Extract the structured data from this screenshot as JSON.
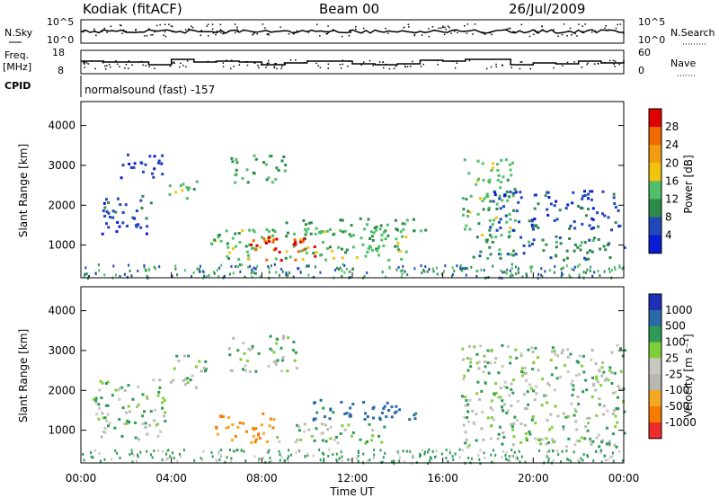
{
  "header": {
    "station": "Kodiak (fitACF)",
    "beam": "Beam 00",
    "date": "26/Jul/2009"
  },
  "strips": {
    "nsky_label": "N.Sky",
    "nsearch_label": "N.Search",
    "freq_label_1": "Freq.",
    "freq_label_2": "[MHz]",
    "nave_label": "Nave",
    "cpid_label": "CPID",
    "cpid_text": "normalsound (fast) -157",
    "noise_ticks_left": [
      "10^5",
      "10^0"
    ],
    "noise_ticks_right": [
      "10^5",
      "10^0"
    ],
    "freq_ticks": [
      "18",
      "8"
    ],
    "nave_ticks": [
      "60",
      "0"
    ]
  },
  "colors": {
    "power_scale": [
      "#0a1bd6",
      "#2048b8",
      "#2e8a4a",
      "#4fbf6a",
      "#f1c40f",
      "#f39c12",
      "#f06a00",
      "#e00000"
    ],
    "velocity_scale": [
      "#1c30b8",
      "#2a6aa8",
      "#2e9a55",
      "#7fcf3a",
      "#c8c8c0",
      "#b8b8b0",
      "#f5a623",
      "#f57c00",
      "#ee2c2c"
    ]
  },
  "chart_data": [
    {
      "type": "heatmap",
      "panel": "power",
      "ylabel": "Slant Range [km]",
      "ylim": [
        180,
        4600
      ],
      "yticks": [
        "1000",
        "2000",
        "3000",
        "4000"
      ],
      "xlim": [
        0,
        24
      ],
      "xticks": [
        "00:00",
        "04:00",
        "08:00",
        "12:00",
        "16:00",
        "20:00",
        "00:00"
      ],
      "colorbar_label": "Power [dB]",
      "colorbar_ticks": [
        "4",
        "8",
        "12",
        "16",
        "20",
        "24",
        "28"
      ],
      "regions": [
        {
          "t0": 0.9,
          "t1": 3.2,
          "r0": 1300,
          "r1": 2300,
          "v": 6
        },
        {
          "t0": 1.5,
          "t1": 3.6,
          "r0": 2700,
          "r1": 3300,
          "v": 5
        },
        {
          "t0": 3.8,
          "t1": 5.2,
          "r0": 2200,
          "r1": 2700,
          "v": 14
        },
        {
          "t0": 5.7,
          "t1": 14.6,
          "r0": 650,
          "r1": 1450,
          "v": 14
        },
        {
          "t0": 7.4,
          "t1": 10.3,
          "r0": 650,
          "r1": 1250,
          "v": 28
        },
        {
          "t0": 9.0,
          "t1": 15.5,
          "r0": 1250,
          "r1": 1700,
          "v": 12
        },
        {
          "t0": 6.5,
          "t1": 9.0,
          "r0": 2600,
          "r1": 3300,
          "v": 12
        },
        {
          "t0": 16.8,
          "t1": 19.2,
          "r0": 1200,
          "r1": 3200,
          "v": 14
        },
        {
          "t0": 17.3,
          "t1": 24.0,
          "r0": 650,
          "r1": 1250,
          "v": 10
        },
        {
          "t0": 18.0,
          "t1": 23.8,
          "r0": 1400,
          "r1": 2400,
          "v": 6
        }
      ]
    },
    {
      "type": "heatmap",
      "panel": "velocity",
      "ylabel": "Slant Range [km]",
      "xlabel": "Time UT",
      "ylim": [
        180,
        4600
      ],
      "yticks": [
        "1000",
        "2000",
        "3000",
        "4000"
      ],
      "xlim": [
        0,
        24
      ],
      "xticks": [
        "00:00",
        "04:00",
        "08:00",
        "12:00",
        "16:00",
        "20:00",
        "00:00"
      ],
      "colorbar_label": "Velocity [m s⁻¹]",
      "colorbar_ticks": [
        "1000",
        "500",
        "100",
        "25",
        "-25",
        "-100",
        "-500",
        "-1000"
      ],
      "regions": [
        {
          "t0": 0.5,
          "t1": 3.8,
          "r0": 800,
          "r1": 2300,
          "v": 0
        },
        {
          "t0": 3.8,
          "t1": 5.5,
          "r0": 2100,
          "r1": 2900,
          "v": 0
        },
        {
          "t0": 5.8,
          "t1": 8.5,
          "r0": 700,
          "r1": 1450,
          "v": -300
        },
        {
          "t0": 8.5,
          "t1": 13.5,
          "r0": 700,
          "r1": 1200,
          "v": 0
        },
        {
          "t0": 10.0,
          "t1": 15.0,
          "r0": 1250,
          "r1": 1800,
          "v": 150
        },
        {
          "t0": 6.5,
          "t1": 9.5,
          "r0": 2500,
          "r1": 3400,
          "v": 0
        },
        {
          "t0": 16.8,
          "t1": 24.0,
          "r0": 600,
          "r1": 3200,
          "v": 0
        }
      ]
    }
  ]
}
